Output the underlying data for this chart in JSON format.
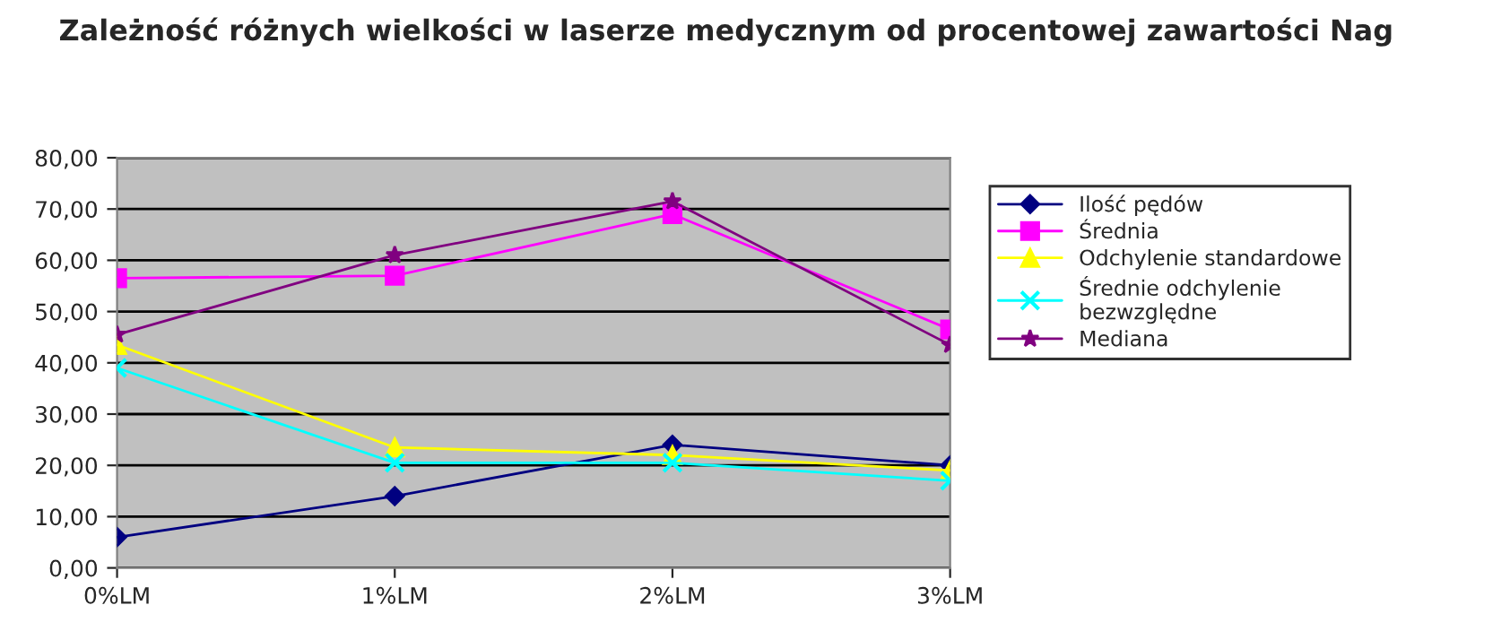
{
  "chart_data": {
    "type": "line",
    "title": "Zależność różnych wielkości w laserze medycznym od procentowej zawartości Nag",
    "categories": [
      "0%LM",
      "1%LM",
      "2%LM",
      "3%LM"
    ],
    "series": [
      {
        "name": "Ilość pędów",
        "color": "#000080",
        "marker": "diamond",
        "values": [
          6,
          14,
          24,
          20
        ]
      },
      {
        "name": "Średnia",
        "color": "#ff00ff",
        "marker": "square",
        "values": [
          56.5,
          57,
          69,
          46.5
        ]
      },
      {
        "name": "Odchylenie standardowe",
        "color": "#ffff00",
        "marker": "triangle",
        "values": [
          43.5,
          23.5,
          22,
          19
        ]
      },
      {
        "name": "Średnie odchylenie\nbezwzględne",
        "color": "#00ffff",
        "marker": "cross",
        "values": [
          39,
          20.5,
          20.5,
          17
        ]
      },
      {
        "name": "Mediana",
        "color": "#800080",
        "marker": "star",
        "values": [
          45.5,
          61,
          71.5,
          43.5
        ]
      }
    ],
    "ylim": [
      0,
      80
    ],
    "yticks": [
      {
        "value": 0,
        "label": "0,00"
      },
      {
        "value": 10,
        "label": "10,00"
      },
      {
        "value": 20,
        "label": "20,00"
      },
      {
        "value": 30,
        "label": "30,00"
      },
      {
        "value": 40,
        "label": "40,00"
      },
      {
        "value": 50,
        "label": "50,00"
      },
      {
        "value": 60,
        "label": "60,00"
      },
      {
        "value": 70,
        "label": "70,00"
      },
      {
        "value": 80,
        "label": "80,00"
      }
    ],
    "grid": "y",
    "legend": "right"
  }
}
